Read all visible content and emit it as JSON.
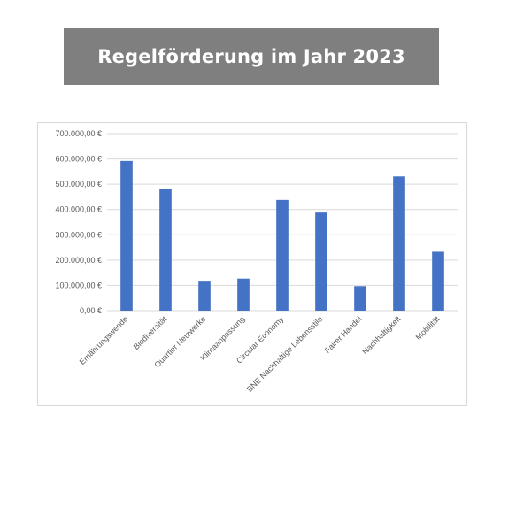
{
  "header": {
    "title": "Regelförderung im Jahr 2023"
  },
  "chart_data": {
    "type": "bar",
    "title": "",
    "xlabel": "",
    "ylabel": "",
    "categories": [
      "Ernährungswende",
      "Biodiversität",
      "Quartier Netzwerke",
      "Klimaanpassung",
      "Circular Economy",
      "BNE Nachhaltige Lebensstile",
      "Fairer Handel",
      "Nachhaltigkeit",
      "Mobilität"
    ],
    "values": [
      592000,
      482000,
      115000,
      127000,
      438000,
      388000,
      97000,
      531000,
      233000
    ],
    "ylim": [
      0,
      700000
    ],
    "yticks": [
      0,
      100000,
      200000,
      300000,
      400000,
      500000,
      600000,
      700000
    ],
    "ytick_labels": [
      "0,00 €",
      "100.000,00 €",
      "200.000,00 €",
      "300.000,00 €",
      "400.000,00 €",
      "500.000,00 €",
      "600.000,00 €",
      "700.000,00 €"
    ],
    "grid": true,
    "legend": "none",
    "bar_color": "#4472c4",
    "grid_color": "#d9d9d9"
  }
}
